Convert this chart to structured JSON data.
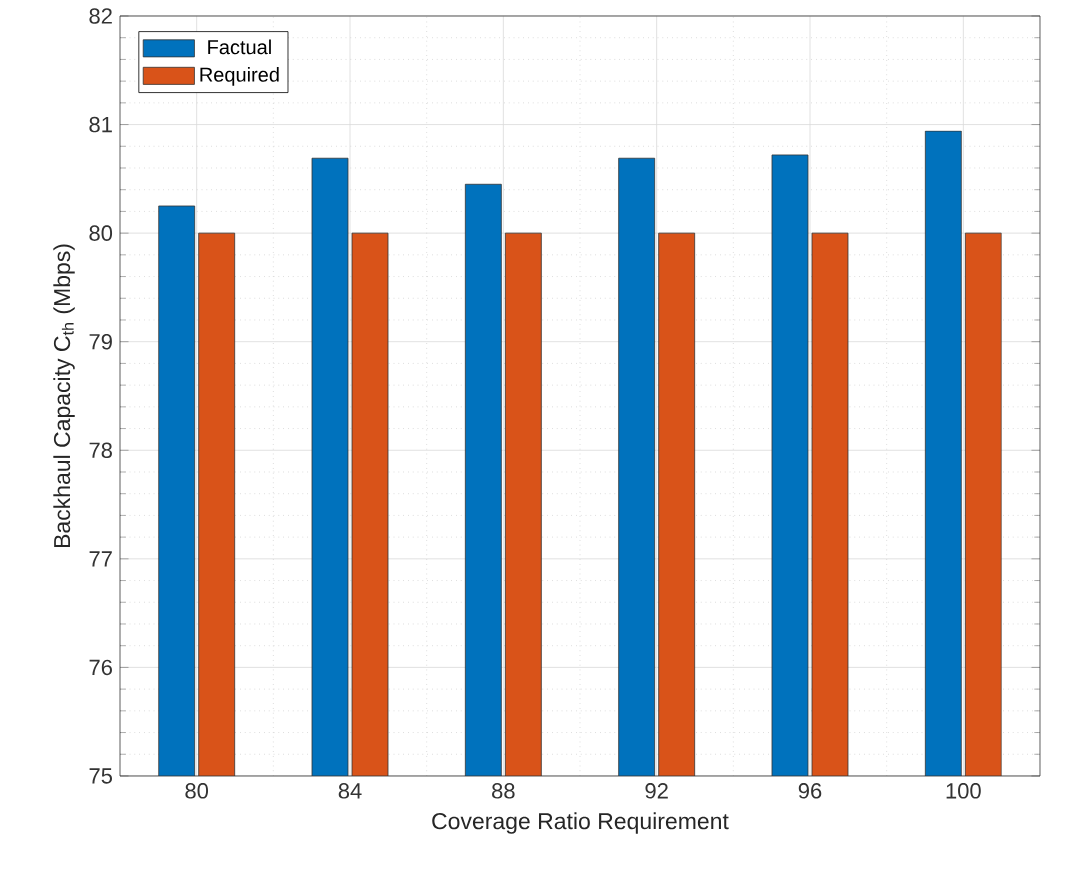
{
  "chart_data": {
    "type": "bar",
    "xlabel": "Coverage Ratio Requirement",
    "ylabel": "Backhaul Capacity C$_{th}$ (Mbps)",
    "categories": [
      "80",
      "84",
      "88",
      "92",
      "96",
      "100"
    ],
    "series": [
      {
        "name": "Factual",
        "color": "#0072bd",
        "values": [
          80.25,
          80.69,
          80.45,
          80.69,
          80.72,
          80.94
        ]
      },
      {
        "name": "Required",
        "color": "#d95319",
        "values": [
          80,
          80,
          80,
          80,
          80,
          80
        ]
      }
    ],
    "ylim": [
      75,
      82
    ],
    "yticks": [
      75,
      76,
      77,
      78,
      79,
      80,
      81,
      82
    ],
    "grid": true,
    "legend": "top left"
  }
}
